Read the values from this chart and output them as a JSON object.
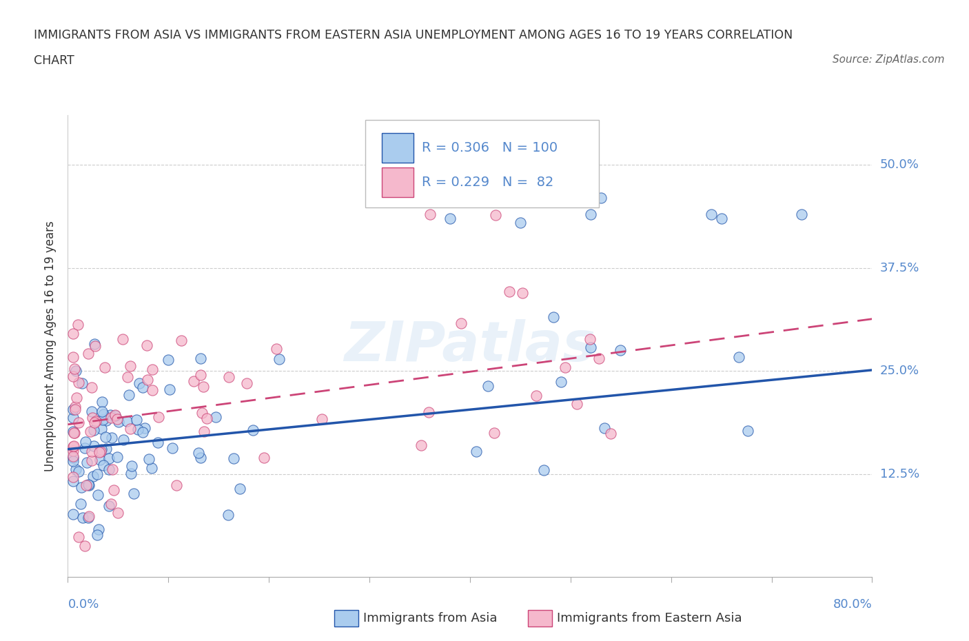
{
  "title_line1": "IMMIGRANTS FROM ASIA VS IMMIGRANTS FROM EASTERN ASIA UNEMPLOYMENT AMONG AGES 16 TO 19 YEARS CORRELATION",
  "title_line2": "CHART",
  "source": "Source: ZipAtlas.com",
  "ylabel": "Unemployment Among Ages 16 to 19 years",
  "xlim": [
    0.0,
    0.8
  ],
  "ylim": [
    0.0,
    0.56
  ],
  "xticks": [
    0.0,
    0.1,
    0.2,
    0.3,
    0.4,
    0.5,
    0.6,
    0.7,
    0.8
  ],
  "yticks": [
    0.125,
    0.25,
    0.375,
    0.5
  ],
  "yticklabels": [
    "12.5%",
    "25.0%",
    "37.5%",
    "50.0%"
  ],
  "color_asia": "#aaccee",
  "color_eastern_asia": "#f5b8cc",
  "line_color_asia": "#2255aa",
  "line_color_eastern": "#cc4477",
  "R_asia": 0.306,
  "N_asia": 100,
  "R_eastern": 0.229,
  "N_eastern": 82,
  "watermark": "ZIPatlas",
  "asia_intercept": 0.155,
  "asia_slope": 0.12,
  "eastern_intercept": 0.185,
  "eastern_slope": 0.16
}
